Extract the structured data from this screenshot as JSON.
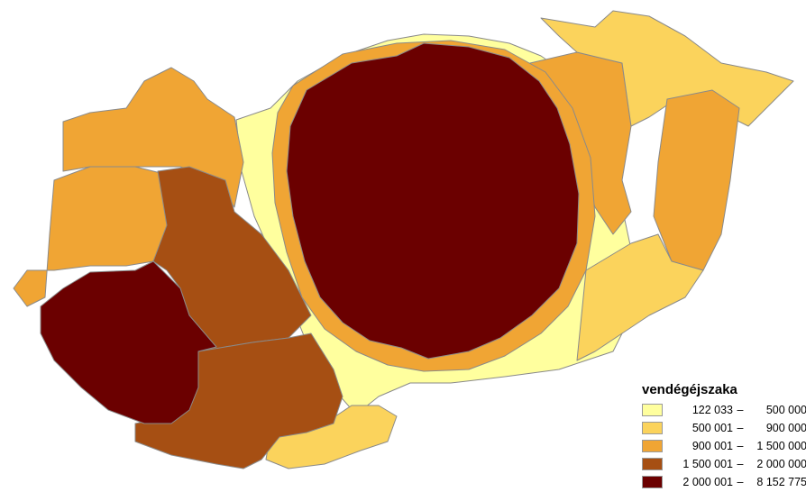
{
  "legend": {
    "title": "vendégéjszaka",
    "classes": [
      {
        "from": "122 033",
        "to": "500 000",
        "color": "#ffff9e"
      },
      {
        "from": "500 001",
        "to": "900 000",
        "color": "#fbd35c"
      },
      {
        "from": "900 001",
        "to": "1 500 000",
        "color": "#f0a534"
      },
      {
        "from": "1 500 001",
        "to": "2 000 000",
        "color": "#a64f13"
      },
      {
        "from": "2 000 001",
        "to": "8 152 775",
        "color": "#6b0000"
      }
    ]
  }
}
